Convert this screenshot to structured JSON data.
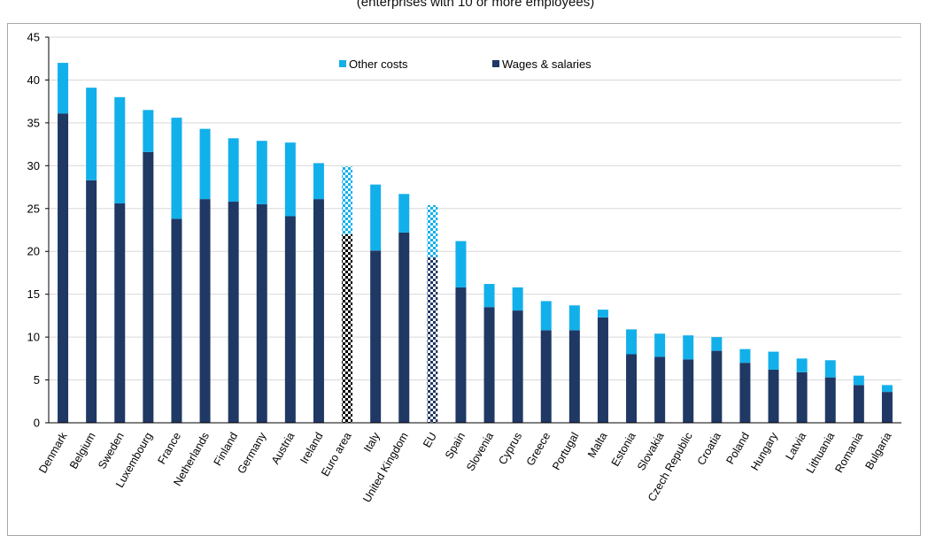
{
  "chart_data": {
    "type": "bar",
    "stacked": true,
    "title": "",
    "subtitle": "(enterprises with 10 or more employees)",
    "xlabel": "",
    "ylabel": "",
    "ylim": [
      0,
      45
    ],
    "yticks": [
      0,
      5,
      10,
      15,
      20,
      25,
      30,
      35,
      40,
      45
    ],
    "grid": true,
    "legend_position": "top",
    "categories": [
      "Denmark",
      "Belgium",
      "Sweden",
      "Luxembourg",
      "France",
      "Netherlands",
      "Finland",
      "Germany",
      "Austria",
      "Ireland",
      "Euro area",
      "Italy",
      "United Kingdom",
      "EU",
      "Spain",
      "Slovenia",
      "Cyprus",
      "Greece",
      "Portugal",
      "Malta",
      "Estonia",
      "Slovakia",
      "Czech Republic",
      "Croatia",
      "Poland",
      "Hungary",
      "Latvia",
      "Lithuania",
      "Romania",
      "Bulgaria"
    ],
    "highlighted_categories": [
      "Euro area",
      "EU"
    ],
    "series": [
      {
        "name": "Wages & salaries",
        "color": "#1f3864",
        "values": [
          36.1,
          28.3,
          25.6,
          31.6,
          23.8,
          26.1,
          25.8,
          25.5,
          24.1,
          26.1,
          22.0,
          20.1,
          22.2,
          19.3,
          15.8,
          13.5,
          13.1,
          10.8,
          10.8,
          12.3,
          8.0,
          7.7,
          7.4,
          8.4,
          7.0,
          6.2,
          5.9,
          5.3,
          4.4,
          3.6
        ]
      },
      {
        "name": "Other costs",
        "color": "#12b0ea",
        "values": [
          5.9,
          10.8,
          12.4,
          4.9,
          11.8,
          8.2,
          7.4,
          7.4,
          8.6,
          4.2,
          7.9,
          7.7,
          4.5,
          6.1,
          5.4,
          2.7,
          2.7,
          3.4,
          2.9,
          0.9,
          2.9,
          2.7,
          2.8,
          1.6,
          1.6,
          2.1,
          1.6,
          2.0,
          1.1,
          0.8
        ]
      }
    ],
    "legend_order": [
      "Other costs",
      "Wages & salaries"
    ]
  }
}
